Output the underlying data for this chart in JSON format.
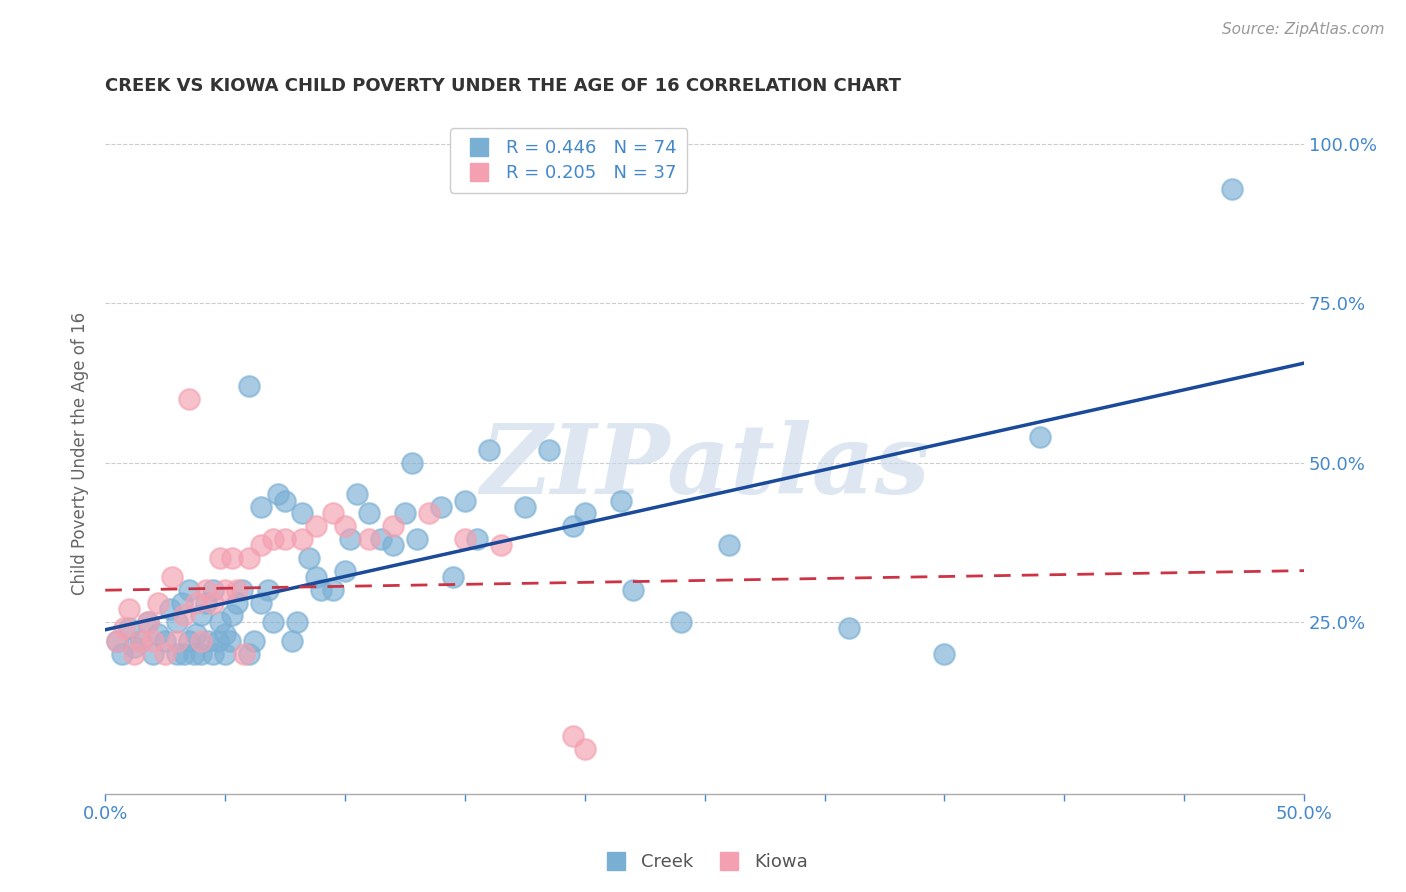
{
  "title": "CREEK VS KIOWA CHILD POVERTY UNDER THE AGE OF 16 CORRELATION CHART",
  "source": "Source: ZipAtlas.com",
  "ylabel": "Child Poverty Under the Age of 16",
  "xlim": [
    0.0,
    0.5
  ],
  "ylim": [
    -0.02,
    1.05
  ],
  "plot_ylim": [
    0.0,
    1.0
  ],
  "xticks": [
    0.0,
    0.05,
    0.1,
    0.15,
    0.2,
    0.25,
    0.3,
    0.35,
    0.4,
    0.45,
    0.5
  ],
  "xticklabels_show": [
    "0.0%",
    "",
    "",
    "",
    "",
    "",
    "",
    "",
    "",
    "",
    "50.0%"
  ],
  "yticks": [
    0.0,
    0.25,
    0.5,
    0.75,
    1.0
  ],
  "yticklabels": [
    "",
    "25.0%",
    "50.0%",
    "75.0%",
    "100.0%"
  ],
  "grid_color": "#cccccc",
  "background_color": "#ffffff",
  "creek_color": "#7aafd4",
  "kiowa_color": "#f4a0b0",
  "creek_line_color": "#1a4a99",
  "kiowa_line_color": "#cc3344",
  "creek_R": 0.446,
  "creek_N": 74,
  "kiowa_R": 0.205,
  "kiowa_N": 37,
  "creek_points_x": [
    0.005,
    0.007,
    0.01,
    0.012,
    0.015,
    0.018,
    0.02,
    0.022,
    0.025,
    0.027,
    0.03,
    0.03,
    0.032,
    0.033,
    0.035,
    0.035,
    0.037,
    0.038,
    0.04,
    0.04,
    0.042,
    0.043,
    0.045,
    0.045,
    0.047,
    0.048,
    0.05,
    0.05,
    0.052,
    0.053,
    0.055,
    0.057,
    0.06,
    0.06,
    0.062,
    0.065,
    0.065,
    0.068,
    0.07,
    0.072,
    0.075,
    0.078,
    0.08,
    0.082,
    0.085,
    0.088,
    0.09,
    0.095,
    0.1,
    0.102,
    0.105,
    0.11,
    0.115,
    0.12,
    0.125,
    0.128,
    0.13,
    0.14,
    0.145,
    0.15,
    0.155,
    0.16,
    0.175,
    0.185,
    0.195,
    0.2,
    0.215,
    0.22,
    0.24,
    0.26,
    0.31,
    0.35,
    0.39,
    0.47
  ],
  "creek_points_y": [
    0.22,
    0.2,
    0.24,
    0.21,
    0.22,
    0.25,
    0.2,
    0.23,
    0.22,
    0.27,
    0.2,
    0.25,
    0.28,
    0.2,
    0.22,
    0.3,
    0.2,
    0.23,
    0.2,
    0.26,
    0.28,
    0.22,
    0.2,
    0.3,
    0.22,
    0.25,
    0.2,
    0.23,
    0.22,
    0.26,
    0.28,
    0.3,
    0.2,
    0.62,
    0.22,
    0.28,
    0.43,
    0.3,
    0.25,
    0.45,
    0.44,
    0.22,
    0.25,
    0.42,
    0.35,
    0.32,
    0.3,
    0.3,
    0.33,
    0.38,
    0.45,
    0.42,
    0.38,
    0.37,
    0.42,
    0.5,
    0.38,
    0.43,
    0.32,
    0.44,
    0.38,
    0.52,
    0.43,
    0.52,
    0.4,
    0.42,
    0.44,
    0.3,
    0.25,
    0.37,
    0.24,
    0.2,
    0.54,
    0.93
  ],
  "kiowa_points_x": [
    0.005,
    0.008,
    0.01,
    0.012,
    0.015,
    0.018,
    0.02,
    0.022,
    0.025,
    0.028,
    0.03,
    0.033,
    0.035,
    0.038,
    0.04,
    0.042,
    0.045,
    0.048,
    0.05,
    0.053,
    0.055,
    0.058,
    0.06,
    0.065,
    0.07,
    0.075,
    0.082,
    0.088,
    0.095,
    0.1,
    0.11,
    0.12,
    0.135,
    0.15,
    0.165,
    0.195,
    0.2
  ],
  "kiowa_points_y": [
    0.22,
    0.24,
    0.27,
    0.2,
    0.22,
    0.25,
    0.22,
    0.28,
    0.2,
    0.32,
    0.22,
    0.26,
    0.6,
    0.28,
    0.22,
    0.3,
    0.28,
    0.35,
    0.3,
    0.35,
    0.3,
    0.2,
    0.35,
    0.37,
    0.38,
    0.38,
    0.38,
    0.4,
    0.42,
    0.4,
    0.38,
    0.4,
    0.42,
    0.38,
    0.37,
    0.07,
    0.05
  ],
  "axis_color": "#4488cc",
  "tick_color": "#4488cc",
  "ylabel_color": "#666666",
  "watermark": "ZIPatlas",
  "watermark_color": "#c8d8e8"
}
